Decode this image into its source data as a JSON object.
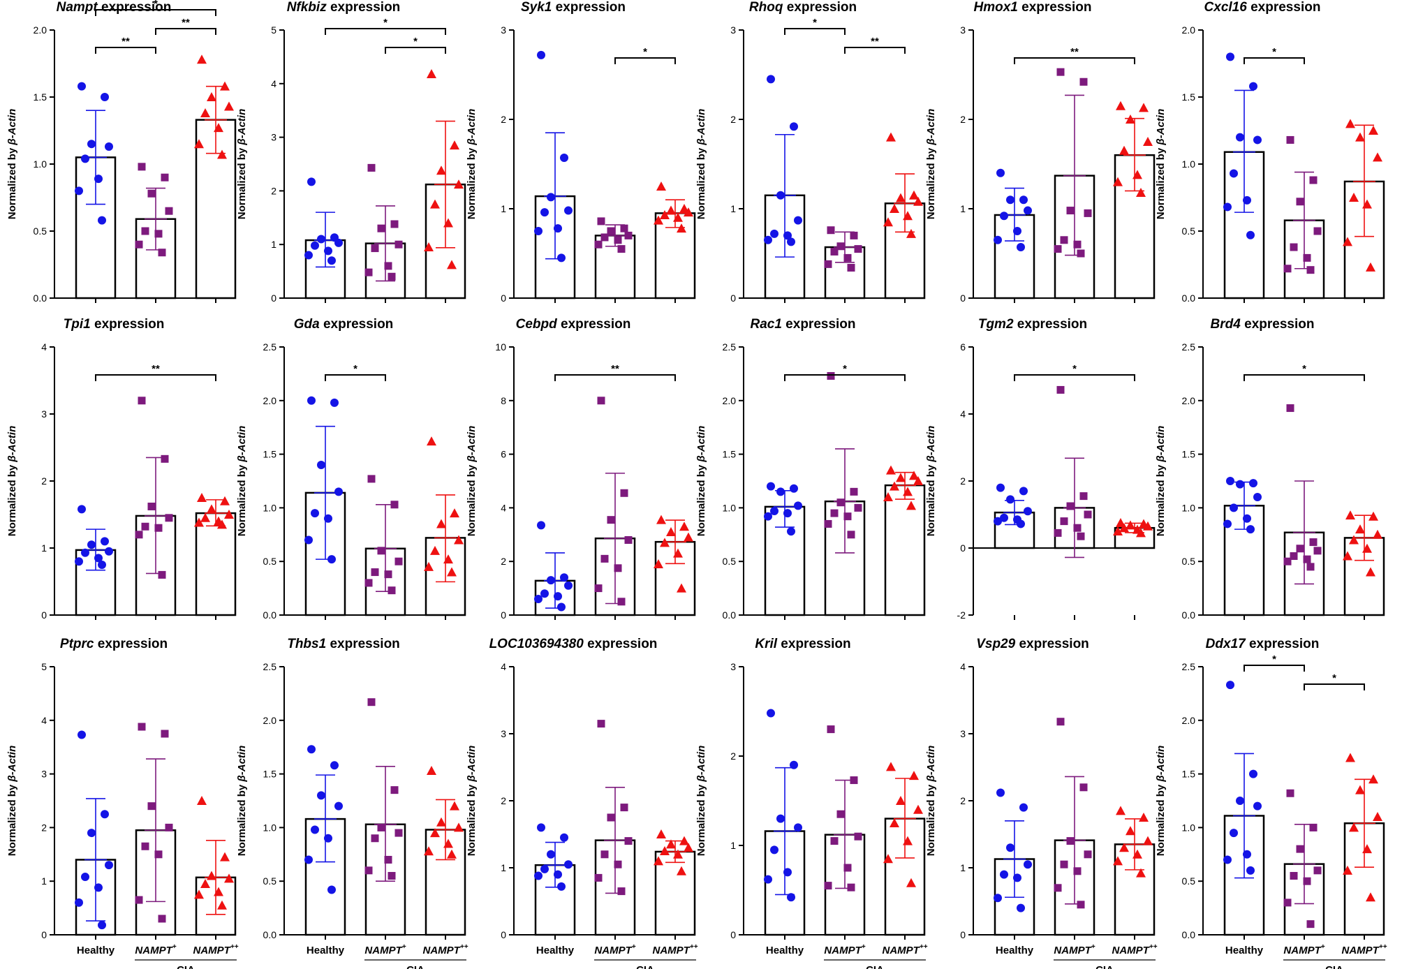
{
  "figure": {
    "ylabel_prefix": "Normalized by ",
    "ylabel_gene": "β-Actin",
    "title_suffix": " expression",
    "groups": [
      {
        "name": "Healthy",
        "sup": "",
        "italic": false
      },
      {
        "name": "NAMPT",
        "sup": "+",
        "italic": true
      },
      {
        "name": "NAMPT",
        "sup": "++",
        "italic": true
      }
    ],
    "cia_label": "CIA",
    "colors": {
      "healthy": "#1414e6",
      "nampt_plus": "#7d1a7d",
      "nampt_plusplus": "#ee1111",
      "bar": "#000000"
    }
  },
  "chart_data": [
    {
      "type": "bar",
      "gene": "Nampt",
      "title": "Nampt expression",
      "ylim": [
        0,
        2.0
      ],
      "yticks": [
        "0.0",
        "0.5",
        "1.0",
        "1.5",
        "2.0"
      ],
      "means": [
        1.05,
        0.59,
        1.33
      ],
      "err_lo": [
        0.7,
        0.36,
        1.08
      ],
      "err_hi": [
        1.4,
        0.82,
        1.58
      ],
      "points": [
        [
          1.58,
          1.5,
          1.15,
          1.13,
          1.04,
          0.89,
          0.8,
          0.58
        ],
        [
          0.98,
          0.9,
          0.78,
          0.65,
          0.5,
          0.48,
          0.4,
          0.34
        ],
        [
          1.78,
          1.58,
          1.5,
          1.43,
          1.38,
          1.27,
          1.15,
          1.07
        ]
      ],
      "sig": [
        {
          "from": 0,
          "to": 1,
          "label": "**",
          "level": 0
        },
        {
          "from": 1,
          "to": 2,
          "label": "**",
          "level": 1
        },
        {
          "from": 0,
          "to": 2,
          "label": "*",
          "level": 2
        }
      ]
    },
    {
      "type": "bar",
      "gene": "Nfkbiz",
      "title": "Nfkbiz expression",
      "ylim": [
        0,
        5
      ],
      "yticks": [
        "0",
        "1",
        "2",
        "3",
        "4",
        "5"
      ],
      "means": [
        1.08,
        1.02,
        2.12
      ],
      "err_lo": [
        0.58,
        0.32,
        0.94
      ],
      "err_hi": [
        1.6,
        1.72,
        3.3
      ],
      "points": [
        [
          2.17,
          1.13,
          1.1,
          1.03,
          0.98,
          0.88,
          0.8,
          0.7
        ],
        [
          2.43,
          1.38,
          1.3,
          1.0,
          0.93,
          0.6,
          0.48,
          0.4
        ],
        [
          4.18,
          2.85,
          2.38,
          2.12,
          1.75,
          1.4,
          0.95,
          0.62
        ]
      ],
      "sig": [
        {
          "from": 1,
          "to": 2,
          "label": "*",
          "level": 0
        },
        {
          "from": 0,
          "to": 2,
          "label": "*",
          "level": 1
        }
      ]
    },
    {
      "type": "bar",
      "gene": "Syk1",
      "title": "Syk1 expression",
      "ylim": [
        0,
        3
      ],
      "yticks": [
        "0",
        "1",
        "2",
        "3"
      ],
      "means": [
        1.14,
        0.7,
        0.95
      ],
      "err_lo": [
        0.44,
        0.58,
        0.79
      ],
      "err_hi": [
        1.85,
        0.82,
        1.1
      ],
      "points": [
        [
          2.72,
          1.57,
          1.13,
          0.98,
          0.96,
          0.78,
          0.75,
          0.45
        ],
        [
          0.86,
          0.78,
          0.75,
          0.7,
          0.68,
          0.65,
          0.6,
          0.55
        ],
        [
          1.25,
          1.0,
          0.98,
          0.96,
          0.93,
          0.9,
          0.87,
          0.78
        ]
      ],
      "sig": [
        {
          "from": 1,
          "to": 2,
          "label": "*",
          "level": 0
        }
      ]
    },
    {
      "type": "bar",
      "gene": "Rhoq",
      "title": "Rhoq expression",
      "ylim": [
        0,
        3
      ],
      "yticks": [
        "0",
        "1",
        "2",
        "3"
      ],
      "means": [
        1.15,
        0.57,
        1.06
      ],
      "err_lo": [
        0.46,
        0.4,
        0.74
      ],
      "err_hi": [
        1.83,
        0.74,
        1.39
      ],
      "points": [
        [
          2.45,
          1.92,
          1.15,
          0.87,
          0.72,
          0.7,
          0.65,
          0.63
        ],
        [
          0.76,
          0.7,
          0.58,
          0.55,
          0.52,
          0.45,
          0.38,
          0.34
        ],
        [
          1.8,
          1.15,
          1.12,
          1.08,
          1.0,
          0.92,
          0.85,
          0.72
        ]
      ],
      "sig": [
        {
          "from": 0,
          "to": 1,
          "label": "*",
          "level": 1
        },
        {
          "from": 1,
          "to": 2,
          "label": "**",
          "level": 0
        }
      ]
    },
    {
      "type": "bar",
      "gene": "Hmox1",
      "title": "Hmox1 expression",
      "ylim": [
        0,
        3
      ],
      "yticks": [
        "0",
        "1",
        "2",
        "3"
      ],
      "means": [
        0.93,
        1.37,
        1.6
      ],
      "err_lo": [
        0.64,
        0.48,
        1.2
      ],
      "err_hi": [
        1.23,
        2.27,
        2.01
      ],
      "points": [
        [
          1.4,
          1.1,
          1.1,
          0.98,
          0.92,
          0.75,
          0.65,
          0.57
        ],
        [
          2.53,
          2.42,
          0.98,
          0.95,
          0.65,
          0.6,
          0.55,
          0.5
        ],
        [
          2.15,
          2.13,
          2.0,
          1.75,
          1.65,
          1.38,
          1.3,
          1.18
        ]
      ],
      "sig": [
        {
          "from": 0,
          "to": 2,
          "label": "**",
          "level": 0
        }
      ]
    },
    {
      "type": "bar",
      "gene": "Cxcl16",
      "title": "Cxcl16 expression",
      "ylim": [
        0,
        2.0
      ],
      "yticks": [
        "0.0",
        "0.5",
        "1.0",
        "1.5",
        "2.0"
      ],
      "means": [
        1.09,
        0.58,
        0.87
      ],
      "err_lo": [
        0.64,
        0.22,
        0.46
      ],
      "err_hi": [
        1.55,
        0.94,
        1.29
      ],
      "points": [
        [
          1.8,
          1.58,
          1.2,
          1.18,
          0.93,
          0.73,
          0.68,
          0.47
        ],
        [
          1.18,
          0.88,
          0.72,
          0.5,
          0.38,
          0.3,
          0.22,
          0.21
        ],
        [
          1.3,
          1.25,
          1.2,
          1.05,
          0.75,
          0.7,
          0.42,
          0.23
        ]
      ],
      "sig": [
        {
          "from": 0,
          "to": 1,
          "label": "*",
          "level": 0
        }
      ]
    },
    {
      "type": "bar",
      "gene": "Tpi1",
      "title": "Tpi1 expression",
      "ylim": [
        0,
        4
      ],
      "yticks": [
        "0",
        "1",
        "2",
        "3",
        "4"
      ],
      "means": [
        0.97,
        1.48,
        1.52
      ],
      "err_lo": [
        0.67,
        0.62,
        1.33
      ],
      "err_hi": [
        1.28,
        2.35,
        1.72
      ],
      "points": [
        [
          1.58,
          1.1,
          1.05,
          0.95,
          0.93,
          0.85,
          0.8,
          0.75
        ],
        [
          3.2,
          2.33,
          1.62,
          1.45,
          1.32,
          1.3,
          1.2,
          0.6
        ],
        [
          1.75,
          1.7,
          1.58,
          1.5,
          1.45,
          1.4,
          1.38,
          1.35
        ]
      ],
      "sig": [
        {
          "from": 0,
          "to": 2,
          "label": "**",
          "level": 0
        }
      ]
    },
    {
      "type": "bar",
      "gene": "Gda",
      "title": "Gda expression",
      "ylim": [
        0,
        2.5
      ],
      "yticks": [
        "0.0",
        "0.5",
        "1.0",
        "1.5",
        "2.0",
        "2.5"
      ],
      "means": [
        1.14,
        0.62,
        0.72
      ],
      "err_lo": [
        0.52,
        0.22,
        0.31
      ],
      "err_hi": [
        1.76,
        1.03,
        1.12
      ],
      "points": [
        [
          2.0,
          1.98,
          1.4,
          1.15,
          0.95,
          0.9,
          0.7,
          0.52
        ],
        [
          1.27,
          1.03,
          0.6,
          0.5,
          0.4,
          0.38,
          0.3,
          0.23
        ],
        [
          1.62,
          0.95,
          0.85,
          0.7,
          0.6,
          0.52,
          0.45,
          0.4
        ]
      ],
      "sig": [
        {
          "from": 0,
          "to": 1,
          "label": "*",
          "level": 0
        }
      ]
    },
    {
      "type": "bar",
      "gene": "Cebpd",
      "title": "Cebpd expression",
      "ylim": [
        0,
        10
      ],
      "yticks": [
        "0",
        "2",
        "4",
        "6",
        "8",
        "10"
      ],
      "means": [
        1.28,
        2.86,
        2.73
      ],
      "err_lo": [
        0.26,
        0.43,
        1.92
      ],
      "err_hi": [
        2.32,
        5.29,
        3.54
      ],
      "points": [
        [
          3.35,
          1.4,
          1.3,
          1.1,
          0.8,
          0.7,
          0.6,
          0.3
        ],
        [
          8.0,
          4.55,
          3.55,
          2.8,
          2.1,
          1.75,
          1.0,
          0.5
        ],
        [
          3.55,
          3.3,
          3.1,
          2.9,
          2.7,
          2.3,
          1.9,
          1.0
        ]
      ],
      "sig": [
        {
          "from": 0,
          "to": 2,
          "label": "**",
          "level": 0
        }
      ]
    },
    {
      "type": "bar",
      "gene": "Rac1",
      "title": "Rac1 expression",
      "ylim": [
        0,
        2.5
      ],
      "yticks": [
        "0.0",
        "0.5",
        "1.0",
        "1.5",
        "2.0",
        "2.5"
      ],
      "means": [
        1.01,
        1.06,
        1.21
      ],
      "err_lo": [
        0.82,
        0.58,
        1.08
      ],
      "err_hi": [
        1.16,
        1.55,
        1.33
      ],
      "points": [
        [
          1.2,
          1.18,
          1.15,
          1.02,
          0.97,
          0.95,
          0.92,
          0.78
        ],
        [
          2.23,
          1.15,
          1.05,
          1.0,
          0.95,
          0.92,
          0.85,
          0.75
        ],
        [
          1.35,
          1.3,
          1.28,
          1.25,
          1.2,
          1.15,
          1.1,
          1.02
        ]
      ],
      "sig": [
        {
          "from": 0,
          "to": 2,
          "label": "*",
          "level": 0
        }
      ]
    },
    {
      "type": "bar",
      "gene": "Tgm2",
      "title": "Tgm2 expression",
      "ylim": [
        -2,
        6
      ],
      "yticks": [
        "-2",
        "0",
        "2",
        "4",
        "6"
      ],
      "means": [
        1.06,
        1.2,
        0.6
      ],
      "err_lo": [
        0.7,
        -0.28,
        0.46
      ],
      "err_hi": [
        1.42,
        2.68,
        0.74
      ],
      "points": [
        [
          1.8,
          1.7,
          1.45,
          1.1,
          0.9,
          0.85,
          0.8,
          0.72
        ],
        [
          4.72,
          1.55,
          1.25,
          1.0,
          0.8,
          0.6,
          0.45,
          0.35
        ],
        [
          0.75,
          0.72,
          0.68,
          0.65,
          0.6,
          0.55,
          0.5,
          0.45
        ]
      ],
      "sig": [
        {
          "from": 0,
          "to": 2,
          "label": "*",
          "level": 0
        }
      ]
    },
    {
      "type": "bar",
      "gene": "Brd4",
      "title": "Brd4 expression",
      "ylim": [
        0,
        2.5
      ],
      "yticks": [
        "0.0",
        "0.5",
        "1.0",
        "1.5",
        "2.0",
        "2.5"
      ],
      "means": [
        1.02,
        0.77,
        0.72
      ],
      "err_lo": [
        0.8,
        0.29,
        0.51
      ],
      "err_hi": [
        1.24,
        1.25,
        0.93
      ],
      "points": [
        [
          1.25,
          1.23,
          1.22,
          1.1,
          1.0,
          0.9,
          0.85,
          0.8
        ],
        [
          1.93,
          0.68,
          0.62,
          0.6,
          0.55,
          0.52,
          0.5,
          0.45
        ],
        [
          0.93,
          0.92,
          0.8,
          0.75,
          0.7,
          0.62,
          0.55,
          0.4
        ]
      ],
      "sig": [
        {
          "from": 0,
          "to": 2,
          "label": "*",
          "level": 0
        }
      ]
    },
    {
      "type": "bar",
      "gene": "Ptprc",
      "title": "Ptprc expression",
      "ylim": [
        0,
        5
      ],
      "yticks": [
        "0",
        "1",
        "2",
        "3",
        "4",
        "5"
      ],
      "means": [
        1.4,
        1.95,
        1.07
      ],
      "err_lo": [
        0.26,
        0.62,
        0.38
      ],
      "err_hi": [
        2.54,
        3.28,
        1.76
      ],
      "points": [
        [
          3.73,
          2.25,
          1.9,
          1.3,
          1.08,
          0.88,
          0.6,
          0.18
        ],
        [
          3.88,
          3.75,
          2.4,
          2.0,
          1.65,
          1.5,
          0.65,
          0.3
        ],
        [
          2.5,
          1.45,
          1.1,
          1.05,
          0.95,
          0.8,
          0.75,
          0.55
        ]
      ],
      "sig": []
    },
    {
      "type": "bar",
      "gene": "Thbs1",
      "title": "Thbs1 expression",
      "ylim": [
        0,
        2.5
      ],
      "yticks": [
        "0.0",
        "0.5",
        "1.0",
        "1.5",
        "2.0",
        "2.5"
      ],
      "means": [
        1.08,
        1.03,
        0.98
      ],
      "err_lo": [
        0.68,
        0.5,
        0.7
      ],
      "err_hi": [
        1.49,
        1.57,
        1.26
      ],
      "points": [
        [
          1.73,
          1.58,
          1.3,
          1.2,
          0.98,
          0.9,
          0.7,
          0.42
        ],
        [
          2.17,
          1.35,
          1.0,
          0.95,
          0.9,
          0.7,
          0.6,
          0.55
        ],
        [
          1.53,
          1.2,
          1.05,
          1.0,
          0.95,
          0.85,
          0.78,
          0.75
        ]
      ],
      "sig": []
    },
    {
      "type": "bar",
      "gene": "LOC103694380",
      "title": "LOC103694380 expression",
      "ylim": [
        0,
        4
      ],
      "yticks": [
        "0",
        "1",
        "2",
        "3",
        "4"
      ],
      "means": [
        1.04,
        1.41,
        1.24
      ],
      "err_lo": [
        0.71,
        0.62,
        1.08
      ],
      "err_hi": [
        1.38,
        2.2,
        1.4
      ],
      "points": [
        [
          1.6,
          1.45,
          1.2,
          1.05,
          0.98,
          0.9,
          0.88,
          0.72
        ],
        [
          3.15,
          1.9,
          1.75,
          1.4,
          1.2,
          1.05,
          0.85,
          0.65
        ],
        [
          1.5,
          1.4,
          1.35,
          1.3,
          1.25,
          1.2,
          1.1,
          0.95
        ]
      ],
      "sig": []
    },
    {
      "type": "bar",
      "gene": "Kril",
      "title": "Kril expression",
      "ylim": [
        0,
        3
      ],
      "yticks": [
        "0",
        "1",
        "2",
        "3"
      ],
      "means": [
        1.16,
        1.12,
        1.3
      ],
      "err_lo": [
        0.45,
        0.52,
        0.86
      ],
      "err_hi": [
        1.87,
        1.73,
        1.75
      ],
      "points": [
        [
          2.48,
          1.9,
          1.3,
          1.2,
          0.95,
          0.7,
          0.62,
          0.42
        ],
        [
          2.3,
          1.73,
          1.35,
          1.1,
          1.05,
          0.75,
          0.55,
          0.53
        ],
        [
          1.88,
          1.78,
          1.5,
          1.4,
          1.25,
          1.05,
          0.85,
          0.58
        ]
      ],
      "sig": []
    },
    {
      "type": "bar",
      "gene": "Vsp29",
      "title": "Vsp29 expression",
      "ylim": [
        0,
        4
      ],
      "yticks": [
        "0",
        "1",
        "2",
        "3",
        "4"
      ],
      "means": [
        1.13,
        1.41,
        1.35
      ],
      "err_lo": [
        0.56,
        0.46,
        0.97
      ],
      "err_hi": [
        1.7,
        2.36,
        1.73
      ],
      "points": [
        [
          2.12,
          1.9,
          1.3,
          1.05,
          0.9,
          0.85,
          0.55,
          0.4
        ],
        [
          3.18,
          2.2,
          1.4,
          1.2,
          1.05,
          0.95,
          0.7,
          0.45
        ],
        [
          1.85,
          1.75,
          1.55,
          1.4,
          1.3,
          1.2,
          1.1,
          0.92
        ]
      ],
      "sig": []
    },
    {
      "type": "bar",
      "gene": "Ddx17",
      "title": "Ddx17 expression",
      "ylim": [
        0,
        2.5
      ],
      "yticks": [
        "0.0",
        "0.5",
        "1.0",
        "1.5",
        "2.0",
        "2.5"
      ],
      "means": [
        1.11,
        0.66,
        1.04
      ],
      "err_lo": [
        0.53,
        0.29,
        0.63
      ],
      "err_hi": [
        1.69,
        1.03,
        1.45
      ],
      "points": [
        [
          2.33,
          1.5,
          1.25,
          1.2,
          0.95,
          0.75,
          0.7,
          0.6
        ],
        [
          1.32,
          1.0,
          0.8,
          0.6,
          0.55,
          0.5,
          0.3,
          0.1
        ],
        [
          1.65,
          1.45,
          1.35,
          1.1,
          1.0,
          0.8,
          0.6,
          0.35
        ]
      ],
      "sig": [
        {
          "from": 0,
          "to": 1,
          "label": "*",
          "level": 1
        },
        {
          "from": 1,
          "to": 2,
          "label": "*",
          "level": 0
        }
      ]
    }
  ]
}
